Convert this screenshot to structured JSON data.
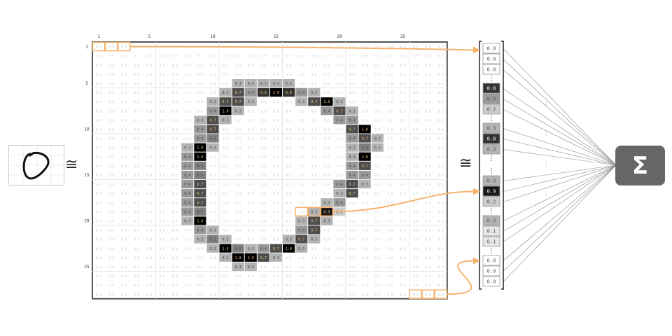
{
  "image_grid": {
    "axis_ticks": [
      "1",
      "5",
      "10",
      "15",
      "20",
      "25"
    ],
    "row_ticks": [
      "1",
      "5",
      "10",
      "15",
      "20",
      "25"
    ],
    "cells": [
      [
        0,
        0,
        0,
        0,
        0,
        0,
        0,
        0,
        0,
        0,
        0,
        0,
        0,
        0,
        0,
        0,
        0,
        0,
        0,
        0,
        0,
        0,
        0,
        0,
        0,
        0,
        0,
        0
      ],
      [
        0,
        0,
        0,
        0,
        0,
        0,
        0,
        0,
        0,
        0,
        0,
        0,
        0,
        0,
        0,
        0,
        0,
        0,
        0,
        0,
        0,
        0,
        0,
        0,
        0,
        0,
        0,
        0
      ],
      [
        0,
        0,
        0,
        0,
        0,
        0,
        0,
        0,
        0,
        0,
        0,
        0,
        0,
        0,
        0,
        0,
        0,
        0,
        0,
        0,
        0,
        0,
        0,
        0,
        0,
        0,
        0,
        0
      ],
      [
        0,
        0,
        0,
        0,
        0,
        0,
        0,
        0,
        0,
        0,
        0,
        0,
        0,
        0,
        0,
        0,
        0,
        0,
        0,
        0,
        0,
        0,
        0,
        0,
        0,
        0,
        0,
        0
      ],
      [
        0,
        0,
        0,
        0,
        0,
        0,
        0,
        0,
        0,
        0,
        0,
        0.3,
        0.3,
        0.3,
        0.3,
        0.3,
        0,
        0,
        0,
        0,
        0,
        0,
        0,
        0,
        0,
        0,
        0,
        0
      ],
      [
        0,
        0,
        0,
        0,
        0,
        0,
        0,
        0,
        0,
        0,
        0.3,
        0.7,
        0.4,
        0.8,
        1.0,
        0.8,
        0.4,
        0.3,
        0,
        0,
        0,
        0,
        0,
        0,
        0,
        0,
        0,
        0
      ],
      [
        0,
        0,
        0,
        0,
        0,
        0,
        0,
        0,
        0,
        0.3,
        0.7,
        0.7,
        0.3,
        0,
        0,
        0,
        0.3,
        0.7,
        1.0,
        0.3,
        0,
        0,
        0,
        0,
        0,
        0,
        0,
        0
      ],
      [
        0,
        0,
        0,
        0,
        0,
        0,
        0,
        0,
        0,
        0.4,
        1.0,
        0.3,
        0,
        0,
        0,
        0,
        0,
        0,
        0.4,
        0.7,
        0.3,
        0,
        0,
        0,
        0,
        0,
        0,
        0
      ],
      [
        0,
        0,
        0,
        0,
        0,
        0,
        0,
        0,
        0.3,
        0.7,
        0.3,
        0,
        0,
        0,
        0,
        0,
        0,
        0,
        0,
        0.4,
        0.4,
        0,
        0,
        0,
        0,
        0,
        0,
        0
      ],
      [
        0,
        0,
        0,
        0,
        0,
        0,
        0,
        0,
        0.4,
        0.7,
        0,
        0,
        0,
        0,
        0,
        0,
        0,
        0,
        0,
        0,
        0.7,
        1.0,
        0,
        0,
        0,
        0,
        0,
        0
      ],
      [
        0,
        0,
        0,
        0,
        0,
        0,
        0,
        0,
        0.4,
        0.5,
        0,
        0,
        0,
        0,
        0,
        0,
        0,
        0,
        0,
        0,
        0.4,
        0.7,
        0.3,
        0,
        0,
        0,
        0,
        0
      ],
      [
        0,
        0,
        0,
        0,
        0,
        0,
        0,
        0.3,
        1.0,
        0.3,
        0,
        0,
        0,
        0,
        0,
        0,
        0,
        0,
        0,
        0,
        0.3,
        0.5,
        0.3,
        0,
        0,
        0,
        0,
        0
      ],
      [
        0,
        0,
        0,
        0,
        0,
        0,
        0,
        0.4,
        1.0,
        0,
        0,
        0,
        0,
        0,
        0,
        0,
        0,
        0,
        0,
        0,
        0.3,
        1.0,
        0,
        0,
        0,
        0,
        0,
        0
      ],
      [
        0,
        0,
        0,
        0,
        0,
        0,
        0,
        0.4,
        0.5,
        0,
        0,
        0,
        0,
        0,
        0,
        0,
        0,
        0,
        0,
        0,
        0.4,
        0.7,
        0,
        0,
        0,
        0,
        0,
        0
      ],
      [
        0,
        0,
        0,
        0,
        0,
        0,
        0,
        0.4,
        0.5,
        0,
        0,
        0,
        0,
        0,
        0,
        0,
        0,
        0,
        0,
        0,
        0.4,
        0.4,
        0,
        0,
        0,
        0,
        0,
        0
      ],
      [
        0,
        0,
        0,
        0,
        0,
        0,
        0,
        0.4,
        0.7,
        0,
        0,
        0,
        0,
        0,
        0,
        0,
        0,
        0,
        0,
        0.4,
        0.7,
        0.3,
        0,
        0,
        0,
        0,
        0,
        0
      ],
      [
        0,
        0,
        0,
        0,
        0,
        0,
        0,
        0.4,
        0.7,
        0,
        0,
        0,
        0,
        0,
        0,
        0,
        0,
        0,
        0,
        0.3,
        0.7,
        0,
        0,
        0,
        0,
        0,
        0,
        0
      ],
      [
        0,
        0,
        0,
        0,
        0,
        0,
        0,
        0.4,
        0.7,
        0,
        0,
        0,
        0,
        0,
        0,
        0,
        0,
        0,
        0.3,
        0.4,
        0,
        0,
        0,
        0,
        0,
        0,
        0,
        0
      ],
      [
        0,
        0,
        0,
        0,
        0,
        0,
        0,
        0.4,
        0.5,
        0,
        0,
        0,
        0,
        0,
        0,
        0,
        0,
        0.3,
        0.9,
        0.2,
        0,
        0,
        0,
        0,
        0,
        0,
        0,
        0
      ],
      [
        0,
        0,
        0,
        0,
        0,
        0,
        0,
        0.3,
        1.0,
        0,
        0,
        0,
        0,
        0,
        0,
        0,
        0.3,
        0.7,
        0.3,
        0,
        0,
        0,
        0,
        0,
        0,
        0,
        0,
        0
      ],
      [
        0,
        0,
        0,
        0,
        0,
        0,
        0,
        0,
        0.4,
        0.3,
        0,
        0,
        0,
        0,
        0,
        0,
        0.4,
        0.7,
        0,
        0,
        0,
        0,
        0,
        0,
        0,
        0,
        0,
        0
      ],
      [
        0,
        0,
        0,
        0,
        0,
        0,
        0,
        0,
        0.3,
        0.5,
        0.3,
        0,
        0,
        0,
        0,
        0.3,
        0.7,
        0.3,
        0,
        0,
        0,
        0,
        0,
        0,
        0,
        0,
        0,
        0
      ],
      [
        0,
        0,
        0,
        0,
        0,
        0,
        0,
        0,
        0,
        0.3,
        1.0,
        0.5,
        0.3,
        0.4,
        0.7,
        1.0,
        0.3,
        0,
        0,
        0,
        0,
        0,
        0,
        0,
        0,
        0,
        0,
        0
      ],
      [
        0,
        0,
        0,
        0,
        0,
        0,
        0,
        0,
        0,
        0,
        0.3,
        1.0,
        1.0,
        0.7,
        0.3,
        0,
        0,
        0,
        0,
        0,
        0,
        0,
        0,
        0,
        0,
        0,
        0,
        0
      ],
      [
        0,
        0,
        0,
        0,
        0,
        0,
        0,
        0,
        0,
        0,
        0,
        0.3,
        0.3,
        0,
        0,
        0,
        0,
        0,
        0,
        0,
        0,
        0,
        0,
        0,
        0,
        0,
        0,
        0
      ],
      [
        0,
        0,
        0,
        0,
        0,
        0,
        0,
        0,
        0,
        0,
        0,
        0,
        0,
        0,
        0,
        0,
        0,
        0,
        0,
        0,
        0,
        0,
        0,
        0,
        0,
        0,
        0,
        0
      ],
      [
        0,
        0,
        0,
        0,
        0,
        0,
        0,
        0,
        0,
        0,
        0,
        0,
        0,
        0,
        0,
        0,
        0,
        0,
        0,
        0,
        0,
        0,
        0,
        0,
        0,
        0,
        0,
        0
      ],
      [
        0,
        0,
        0,
        0,
        0,
        0,
        0,
        0,
        0,
        0,
        0,
        0,
        0,
        0,
        0,
        0,
        0,
        0,
        0,
        0,
        0,
        0,
        0,
        0,
        0,
        0,
        0,
        0
      ]
    ],
    "highlighted_groups": [
      {
        "row": 1,
        "cols": [
          1,
          2,
          3
        ]
      },
      {
        "row": 19,
        "cols": [
          17,
          18,
          19
        ]
      },
      {
        "row": 28,
        "cols": [
          26,
          27,
          28
        ]
      }
    ]
  },
  "vector": {
    "groups": [
      [
        "0.0",
        "0.0",
        "0.0"
      ],
      [
        "0.8",
        "0.4",
        "0.2"
      ],
      [
        "0.3",
        "0.8",
        "0.3"
      ],
      [],
      [
        "0.3",
        "0.9",
        "0.2"
      ],
      [
        "0.3",
        "0.1",
        "0.1"
      ],
      [
        "0.0",
        "0.0",
        "0.0"
      ]
    ],
    "ellipsis": "⋮"
  },
  "approx_symbol": "≅",
  "sigma_symbol": "Σ",
  "colors": {
    "highlight": "#f5b26b",
    "grid_border": "#555555",
    "grid_faint": "#e6e6e6",
    "connector": "#888888",
    "sigma_bg": "#666666"
  }
}
